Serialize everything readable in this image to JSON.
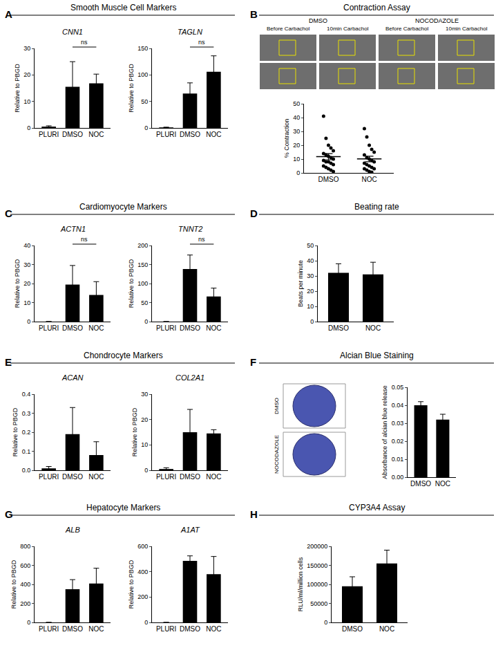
{
  "panels": [
    {
      "letter": "A",
      "heading": "Smooth Muscle Cell Markers"
    },
    {
      "letter": "B",
      "heading": "Contraction Assay"
    },
    {
      "letter": "C",
      "heading": "Cardiomyocyte Markers"
    },
    {
      "letter": "D",
      "heading": "Beating rate"
    },
    {
      "letter": "E",
      "heading": "Chondrocyte Markers"
    },
    {
      "letter": "F",
      "heading": "Alcian Blue Staining"
    },
    {
      "letter": "G",
      "heading": "Hepatocyte Markers"
    },
    {
      "letter": "H",
      "heading": "CYP3A4 Assay"
    }
  ],
  "images": [
    {
      "panel": "B",
      "column_labels": [
        "DMSO",
        "NOCODAZOLE"
      ],
      "sub_labels": [
        "Before Carbachol",
        "10min Carbachol",
        "Before Carbachol",
        "10min Carbachol"
      ]
    },
    {
      "panel": "F",
      "row_labels": [
        "DMSO",
        "NOCODAZOLE"
      ]
    }
  ],
  "chart_data": [
    {
      "panel": "A",
      "type": "bar",
      "title": "CNN1",
      "categories": [
        "PLURI",
        "DMSO",
        "NOC"
      ],
      "values": [
        0.5,
        15.5,
        16.8
      ],
      "errors": [
        0.3,
        9.5,
        3.5
      ],
      "y_label": "Relative to PBGD",
      "ylim": [
        0,
        30
      ],
      "yticks": [
        0,
        10,
        20,
        30
      ],
      "color": "#000000",
      "significance": [
        {
          "from": "DMSO",
          "to": "NOC",
          "label": "ns"
        }
      ]
    },
    {
      "panel": "A",
      "type": "bar",
      "title": "TAGLN",
      "categories": [
        "PLURI",
        "DMSO",
        "NOC"
      ],
      "values": [
        1,
        65,
        106
      ],
      "errors": [
        0.5,
        20,
        30
      ],
      "y_label": "Relative to PBGD",
      "ylim": [
        0,
        150
      ],
      "yticks": [
        0,
        50,
        100,
        150
      ],
      "color": "#000000",
      "significance": [
        {
          "from": "DMSO",
          "to": "NOC",
          "label": "ns"
        }
      ]
    },
    {
      "panel": "B",
      "type": "scatter",
      "categories": [
        "DMSO",
        "NOC"
      ],
      "points": [
        [
          41,
          25,
          20,
          18,
          16,
          14,
          13,
          12,
          11,
          10,
          9,
          8,
          8,
          7,
          6,
          5,
          4,
          3,
          2,
          1
        ],
        [
          32,
          26,
          20,
          17,
          15,
          13,
          11,
          10,
          9,
          8,
          7,
          6,
          5,
          4,
          3,
          3,
          2,
          1,
          0.5
        ]
      ],
      "mean": [
        11.7,
        10.1
      ],
      "sem": [
        2.2,
        2.0
      ],
      "y_label": "% Contraction",
      "ylim": [
        0,
        50
      ],
      "yticks": [
        0,
        10,
        20,
        30,
        40,
        50
      ],
      "color": "#000000"
    },
    {
      "panel": "C",
      "type": "bar",
      "title": "ACTN1",
      "categories": [
        "PLURI",
        "DMSO",
        "NOC"
      ],
      "values": [
        0,
        19.5,
        14
      ],
      "errors": [
        0,
        10,
        7
      ],
      "y_label": "Relative to PBGD",
      "ylim": [
        0,
        40
      ],
      "yticks": [
        0,
        10,
        20,
        30,
        40
      ],
      "color": "#000000",
      "significance": [
        {
          "from": "DMSO",
          "to": "NOC",
          "label": "ns"
        }
      ]
    },
    {
      "panel": "C",
      "type": "bar",
      "title": "TNNT2",
      "categories": [
        "PLURI",
        "DMSO",
        "NOC"
      ],
      "values": [
        0,
        138,
        66
      ],
      "errors": [
        0,
        37,
        22
      ],
      "y_label": "Relative to PBGD",
      "ylim": [
        0,
        200
      ],
      "yticks": [
        0,
        50,
        100,
        150,
        200
      ],
      "color": "#000000",
      "significance": [
        {
          "from": "DMSO",
          "to": "NOC",
          "label": "ns"
        }
      ]
    },
    {
      "panel": "D",
      "type": "bar",
      "categories": [
        "DMSO",
        "NOC"
      ],
      "values": [
        32,
        31
      ],
      "errors": [
        6,
        8
      ],
      "y_label": "Beats per minute",
      "ylim": [
        0,
        50
      ],
      "yticks": [
        0,
        10,
        20,
        30,
        40,
        50
      ],
      "color": "#000000"
    },
    {
      "panel": "E",
      "type": "bar",
      "title": "ACAN",
      "categories": [
        "PLURI",
        "DMSO",
        "NOC"
      ],
      "values": [
        0.01,
        0.19,
        0.08
      ],
      "errors": [
        0.01,
        0.14,
        0.07
      ],
      "y_label": "Relative to PBGD",
      "ylim": [
        0,
        0.4
      ],
      "yticks": [
        {
          "value": 0,
          "label": "0.0"
        },
        0.1,
        0.2,
        0.3,
        0.4
      ],
      "color": "#000000"
    },
    {
      "panel": "E",
      "type": "bar",
      "title": "COL2A1",
      "categories": [
        "PLURI",
        "DMSO",
        "NOC"
      ],
      "values": [
        0.5,
        15,
        14.5
      ],
      "errors": [
        0.5,
        9,
        1.5
      ],
      "y_label": "Relative to PBGD",
      "ylim": [
        0,
        30
      ],
      "yticks": [
        0,
        10,
        20,
        30
      ],
      "color": "#000000"
    },
    {
      "panel": "F",
      "type": "bar",
      "categories": [
        "DMSO",
        "NOC"
      ],
      "values": [
        0.04,
        0.032
      ],
      "errors": [
        0.002,
        0.003
      ],
      "y_label": "Absorbance of alcian blue release",
      "ylim": [
        0,
        0.05
      ],
      "yticks": [
        {
          "value": 0,
          "label": "0.00"
        },
        0.01,
        0.02,
        0.03,
        0.04,
        0.05
      ],
      "color": "#000000"
    },
    {
      "panel": "G",
      "type": "bar",
      "title": "ALB",
      "categories": [
        "PLURI",
        "DMSO",
        "NOC"
      ],
      "values": [
        0,
        350,
        410
      ],
      "errors": [
        0,
        100,
        160
      ],
      "y_label": "Relative to PBGD",
      "ylim": [
        0,
        800
      ],
      "yticks": [
        0,
        200,
        400,
        600,
        800
      ],
      "color": "#000000"
    },
    {
      "panel": "G",
      "type": "bar",
      "title": "A1AT",
      "categories": [
        "PLURI",
        "DMSO",
        "NOC"
      ],
      "values": [
        0,
        485,
        380
      ],
      "errors": [
        0,
        40,
        140
      ],
      "y_label": "Relative to PBGD",
      "ylim": [
        0,
        600
      ],
      "yticks": [
        0,
        200,
        400,
        600
      ],
      "color": "#000000"
    },
    {
      "panel": "H",
      "type": "bar",
      "categories": [
        "DMSO",
        "NOC"
      ],
      "values": [
        95000,
        155000
      ],
      "errors": [
        25000,
        35000
      ],
      "y_label": "RLU/ml/million cells",
      "ylim": [
        0,
        200000
      ],
      "yticks": [
        0,
        50000,
        100000,
        150000,
        200000
      ],
      "color": "#000000"
    }
  ]
}
